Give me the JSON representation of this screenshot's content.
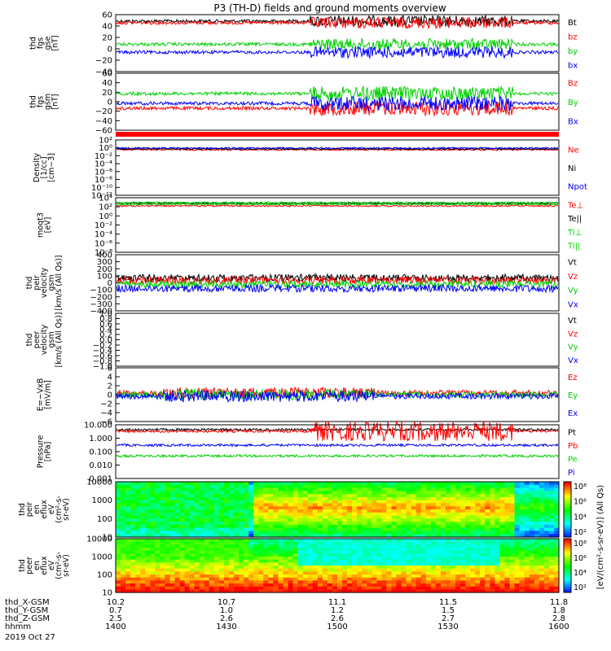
{
  "title": "P3 (TH-D) fields and ground moments overview",
  "colors": {
    "black": "#000000",
    "red": "#ff0000",
    "green": "#00d000",
    "blue": "#0000ff"
  },
  "chart_data": [
    {
      "id": "p1",
      "type": "line",
      "ylabel_lines": [
        "thd",
        "fgs",
        "gse",
        "[nT]"
      ],
      "yticks": [
        "60",
        "40",
        "20",
        "0",
        "−20",
        "−40"
      ],
      "ylim": [
        -40,
        60
      ],
      "series": [
        {
          "name": "Bt",
          "color": "black"
        },
        {
          "name": "bz",
          "color": "red"
        },
        {
          "name": "by",
          "color": "green"
        },
        {
          "name": "bx",
          "color": "blue"
        }
      ]
    },
    {
      "id": "p2",
      "type": "line",
      "ylabel_lines": [
        "thd",
        "fgs",
        "gsm",
        "[nT]"
      ],
      "yticks": [
        "60",
        "40",
        "20",
        "0",
        "−20",
        "−40",
        "−60"
      ],
      "ylim": [
        -70,
        70
      ],
      "series": [
        {
          "name": "Bz",
          "color": "red"
        },
        {
          "name": "By",
          "color": "green"
        },
        {
          "name": "Bx",
          "color": "blue"
        }
      ]
    },
    {
      "id": "p3",
      "type": "line",
      "ylabel_lines": [
        "Density",
        "[1/cc]",
        "[cm−3]"
      ],
      "yticks": [
        "10²",
        "10⁰",
        "10⁻²",
        "10⁻⁴",
        "10⁻⁶",
        "10⁻⁸",
        "10⁻¹⁰",
        "10⁻¹²"
      ],
      "log": true,
      "series": [
        {
          "name": "Ne",
          "color": "red"
        },
        {
          "name": "Ni",
          "color": "black"
        },
        {
          "name": "Npot",
          "color": "blue"
        }
      ]
    },
    {
      "id": "p4",
      "type": "line",
      "ylabel_lines": [
        "moqt3",
        "[eV]"
      ],
      "yticks": [
        "10⁴",
        "10²",
        "10⁰",
        "10⁻²",
        "10⁻⁴",
        "10⁻⁶",
        "10⁻⁸"
      ],
      "log": true,
      "series": [
        {
          "name": "Te⊥",
          "color": "red"
        },
        {
          "name": "Te||",
          "color": "black"
        },
        {
          "name": "Ti⊥",
          "color": "green"
        },
        {
          "name": "Ti||",
          "color": "green"
        }
      ]
    },
    {
      "id": "p5",
      "type": "line",
      "ylabel_lines": [
        "thd",
        "peir",
        "velocity",
        "gsm",
        "[km/s (All Qs)]"
      ],
      "yticks": [
        "400",
        "300",
        "200",
        "100",
        "0",
        "−100",
        "−200",
        "−300",
        "−400"
      ],
      "ylim": [
        -400,
        400
      ],
      "series": [
        {
          "name": "Vt",
          "color": "black"
        },
        {
          "name": "Vz",
          "color": "red"
        },
        {
          "name": "Vy",
          "color": "green"
        },
        {
          "name": "Vx",
          "color": "blue"
        }
      ]
    },
    {
      "id": "p6",
      "type": "line",
      "ylabel_lines": [
        "thd",
        "peer",
        "velocity",
        "gsm",
        "[km/s (All Qs)]"
      ],
      "yticks": [
        "1.0",
        "0.8",
        "0.6",
        "0.4",
        "0.2",
        "0.0",
        "−0.2",
        "−0.4",
        "−0.6",
        "−0.8",
        "−1.0"
      ],
      "ylim": [
        -1,
        1
      ],
      "series": [
        {
          "name": "Vt",
          "color": "black"
        },
        {
          "name": "Vz",
          "color": "red"
        },
        {
          "name": "Vy",
          "color": "green"
        },
        {
          "name": "Vx",
          "color": "blue"
        }
      ]
    },
    {
      "id": "p7",
      "type": "line",
      "ylabel_lines": [
        "E=−VxB",
        "[mV/m]"
      ],
      "yticks": [
        "6",
        "4",
        "2",
        "0",
        "−2",
        "−4",
        "−6"
      ],
      "ylim": [
        -6,
        6
      ],
      "series": [
        {
          "name": "Ez",
          "color": "red"
        },
        {
          "name": "Ey",
          "color": "green"
        },
        {
          "name": "Ex",
          "color": "blue"
        }
      ]
    },
    {
      "id": "p8",
      "type": "line",
      "ylabel_lines": [
        "Pressure",
        "[nPa]"
      ],
      "yticks": [
        "10.000",
        "1.000",
        "0.100",
        "0.010",
        "0.001"
      ],
      "log": true,
      "series": [
        {
          "name": "Pt",
          "color": "black"
        },
        {
          "name": "Pb",
          "color": "red"
        },
        {
          "name": "Pe",
          "color": "green"
        },
        {
          "name": "Pi",
          "color": "blue"
        }
      ]
    },
    {
      "id": "p9",
      "type": "heatmap",
      "ylabel_lines": [
        "thd",
        "peir",
        "en",
        "eflux",
        "eV",
        "(cm²-s-",
        "sr-eV)"
      ],
      "yticks": [
        "10000",
        "1000",
        "100",
        "10"
      ],
      "log": true
    },
    {
      "id": "p10",
      "type": "heatmap",
      "ylabel_lines": [
        "thd",
        "peer",
        "en",
        "eflux",
        "eV",
        "(cm²-s-",
        "sr-eV)"
      ],
      "yticks": [
        "10000",
        "1000",
        "100",
        "10"
      ],
      "log": true
    }
  ],
  "colorbar": {
    "upper_ticks": [
      "10⁸",
      "10⁶",
      "10⁴",
      "10²"
    ],
    "lower_ticks": [
      "10⁸",
      "10⁶",
      "10⁴",
      "10²"
    ],
    "label": "[eV/(cm²-s-sr-eV)] (All Qs)"
  },
  "xaxis": {
    "rows": [
      {
        "label": "thd_X-GSM",
        "values": [
          "10.2",
          "10.7",
          "11.1",
          "11.5",
          "11.8"
        ]
      },
      {
        "label": "thd_Y-GSM",
        "values": [
          "0.7",
          "1.0",
          "1.2",
          "1.5",
          "1.8"
        ]
      },
      {
        "label": "thd_Z-GSM",
        "values": [
          "2.5",
          "2.6",
          "2.6",
          "2.7",
          "2.8"
        ]
      },
      {
        "label": "hhmm",
        "values": [
          "1400",
          "1430",
          "1500",
          "1530",
          "1600"
        ]
      }
    ],
    "date": "2019 Oct 27"
  }
}
